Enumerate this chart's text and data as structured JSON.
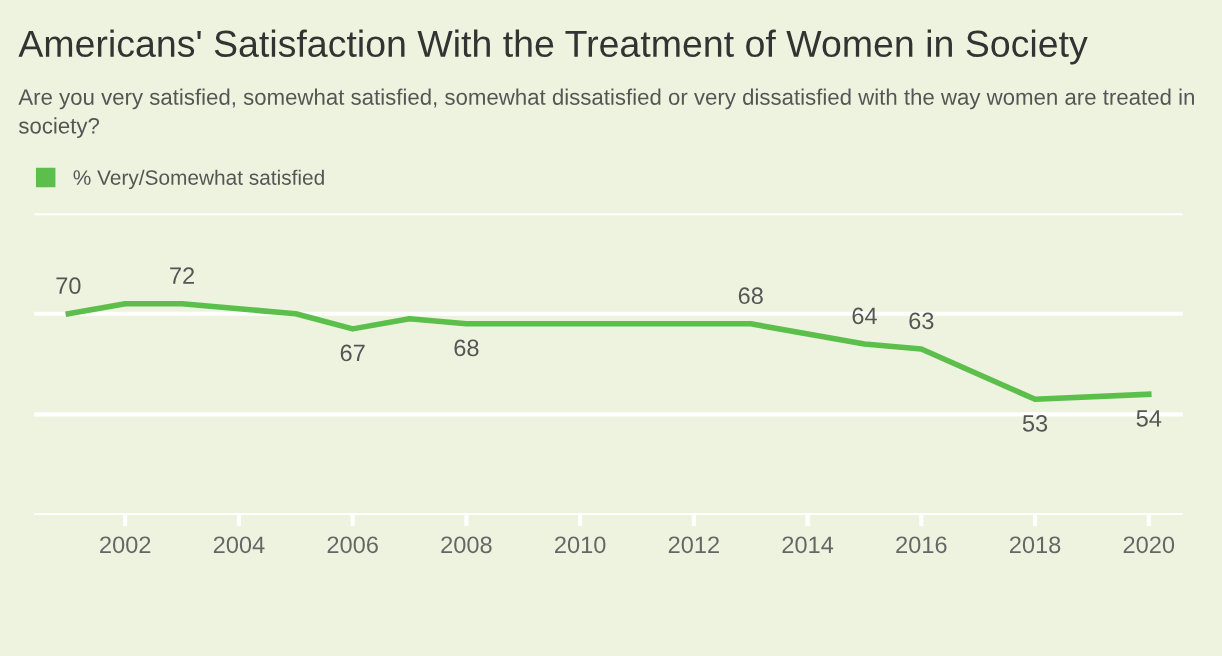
{
  "chart_data": {
    "type": "line",
    "title": "Americans' Satisfaction With the Treatment of Women in Society",
    "subtitle": "Are you very satisfied, somewhat satisfied, somewhat dissatisfied or very dissatisfied with the way women are treated in society?",
    "x": [
      2001,
      2002,
      2003,
      2005,
      2006,
      2007,
      2008,
      2013,
      2015,
      2016,
      2018,
      2020
    ],
    "series": [
      {
        "name": "% Very/Somewhat satisfied",
        "color": "#5cbf4c",
        "values": [
          70,
          72,
          72,
          70,
          67,
          69,
          68,
          68,
          64,
          63,
          53,
          54
        ],
        "value_labels": [
          "70",
          null,
          "72",
          null,
          "67",
          null,
          "68",
          "68",
          "64",
          "63",
          "53",
          "54"
        ]
      }
    ],
    "xlim": [
      2000.4,
      2020.6
    ],
    "xticks": [
      2002,
      2004,
      2006,
      2008,
      2010,
      2012,
      2014,
      2016,
      2018,
      2020
    ],
    "ylim": [
      30,
      90
    ],
    "yticks": [
      {
        "value": 30,
        "label": null
      },
      {
        "value": 50,
        "label": null
      },
      {
        "value": 70,
        "label": null
      },
      {
        "value": 90,
        "label": null
      }
    ],
    "tick_labels": "x",
    "grid": "y",
    "legend": "top left",
    "marker": "none",
    "line_style": "solid"
  }
}
